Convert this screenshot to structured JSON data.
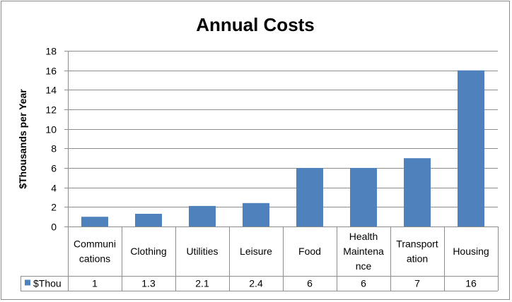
{
  "chart_data": {
    "type": "bar",
    "title": "Annual Costs",
    "ylabel": "$Thousands per Year",
    "xlabel": "",
    "ylim": [
      0,
      18
    ],
    "yticks": [
      0,
      2,
      4,
      6,
      8,
      10,
      12,
      14,
      16,
      18
    ],
    "grid": true,
    "categories": [
      [
        "Communi",
        "cations"
      ],
      [
        "Clothing"
      ],
      [
        "Utilities"
      ],
      [
        "Leisure"
      ],
      [
        "Food"
      ],
      [
        "Health",
        "Maintena",
        "nce"
      ],
      [
        "Transport",
        "ation"
      ],
      [
        "Housing"
      ]
    ],
    "series": [
      {
        "name": "$Thou",
        "values": [
          1,
          1.3,
          2.1,
          2.4,
          6,
          6,
          7,
          16
        ],
        "value_labels": [
          "1",
          "1.3",
          "2.1",
          "2.4",
          "6",
          "6",
          "7",
          "16"
        ],
        "color": "#4f81bd"
      }
    ],
    "legend": "data-table"
  }
}
